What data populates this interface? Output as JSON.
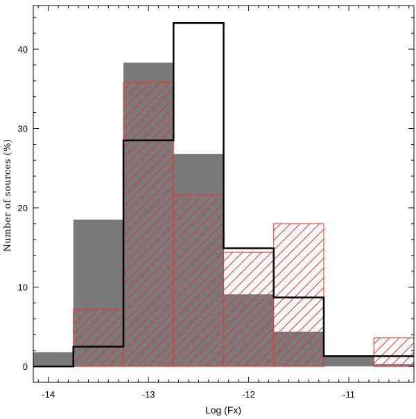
{
  "chart_data": {
    "type": "bar",
    "xlabel": "Log (Fx)",
    "ylabel": "Number of sources (%)",
    "xlim": [
      -14.15,
      -10.35
    ],
    "ylim": [
      -2,
      45.5
    ],
    "x_ticks": [
      -14,
      -13,
      -12,
      -11
    ],
    "x_tick_labels": [
      "-14",
      "-13",
      "-12",
      "-11"
    ],
    "y_ticks": [
      0,
      10,
      20,
      30,
      40
    ],
    "y_tick_labels": [
      "0",
      "10",
      "20",
      "30",
      "40"
    ],
    "bin_edges": [
      -14.25,
      -13.75,
      -13.25,
      -12.75,
      -12.25,
      -11.75,
      -11.25,
      -10.75,
      -10.25
    ],
    "series": [
      {
        "style": "filled-gray",
        "color": "#7a7a7a",
        "values": [
          1.8,
          18.5,
          38.3,
          26.8,
          9.1,
          4.4,
          1.2,
          0.3
        ]
      },
      {
        "style": "red-hatched",
        "color": "#e8322b",
        "values": [
          0.0,
          7.2,
          35.8,
          21.6,
          14.4,
          18.0,
          0.0,
          3.6
        ]
      },
      {
        "style": "black-outline",
        "color": "#000000",
        "values": [
          0.0,
          2.5,
          28.5,
          43.3,
          14.9,
          8.7,
          1.3,
          1.3
        ]
      }
    ],
    "grid": false,
    "legend": "none"
  }
}
